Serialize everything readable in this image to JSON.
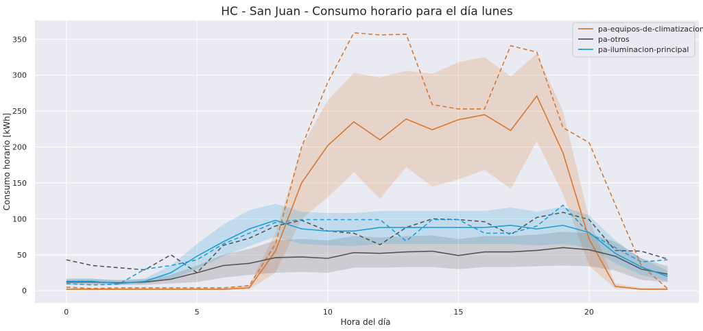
{
  "chart_data": {
    "type": "line",
    "title": "HC - San Juan - Consumo horario para el día lunes",
    "xlabel": "Hora del día",
    "ylabel": "Consumo horario [kWh]",
    "xlim": [
      -1.2,
      24.2
    ],
    "ylim": [
      -17,
      376
    ],
    "xticks": [
      0,
      5,
      10,
      15,
      20
    ],
    "yticks": [
      0,
      50,
      100,
      150,
      200,
      250,
      300,
      350
    ],
    "grid": true,
    "legend_position": "top-right",
    "x": [
      0,
      1,
      2,
      3,
      4,
      5,
      6,
      7,
      8,
      9,
      10,
      11,
      12,
      13,
      14,
      15,
      16,
      17,
      18,
      19,
      20,
      21,
      22,
      23
    ],
    "series": [
      {
        "name": "pa-equipos-de-climatizacion",
        "color": "#d9772f",
        "mean": [
          2,
          2,
          2,
          2,
          2,
          2,
          2,
          4,
          55,
          150,
          202,
          235,
          210,
          239,
          224,
          238,
          245,
          223,
          271,
          192,
          72,
          6,
          2,
          2
        ],
        "lower": [
          1,
          1,
          1,
          1,
          1,
          1,
          1,
          2,
          25,
          100,
          130,
          165,
          128,
          172,
          145,
          155,
          168,
          142,
          208,
          135,
          35,
          3,
          1,
          1
        ],
        "upper": [
          4,
          4,
          4,
          4,
          4,
          4,
          4,
          8,
          80,
          200,
          265,
          303,
          297,
          306,
          302,
          318,
          325,
          298,
          330,
          250,
          100,
          10,
          4,
          4
        ],
        "dashed": [
          5,
          3,
          4,
          4,
          4,
          4,
          4,
          7,
          65,
          200,
          290,
          359,
          356,
          357,
          259,
          253,
          253,
          341,
          332,
          227,
          206,
          120,
          35,
          3
        ]
      },
      {
        "name": "pa-otros",
        "color": "#555555",
        "mean": [
          12,
          12,
          11,
          12,
          16,
          25,
          35,
          38,
          46,
          47,
          45,
          53,
          52,
          54,
          55,
          49,
          54,
          54,
          56,
          60,
          57,
          48,
          30,
          23
        ],
        "lower": [
          8,
          8,
          8,
          8,
          10,
          12,
          18,
          22,
          25,
          26,
          25,
          32,
          32,
          33,
          33,
          30,
          33,
          33,
          34,
          35,
          34,
          28,
          15,
          12
        ],
        "upper": [
          16,
          16,
          15,
          16,
          22,
          35,
          50,
          58,
          70,
          72,
          70,
          76,
          74,
          76,
          77,
          72,
          76,
          76,
          78,
          82,
          80,
          68,
          45,
          34
        ],
        "dashed": [
          43,
          35,
          32,
          29,
          50,
          25,
          63,
          73,
          90,
          98,
          83,
          80,
          64,
          88,
          100,
          99,
          96,
          78,
          102,
          109,
          99,
          56,
          55,
          44
        ]
      },
      {
        "name": "pa-iluminacion-principal",
        "color": "#1e9fd9",
        "mean": [
          13,
          13,
          10,
          13,
          25,
          48,
          68,
          86,
          98,
          86,
          83,
          83,
          88,
          88,
          88,
          88,
          88,
          91,
          86,
          91,
          81,
          52,
          33,
          20
        ],
        "lower": [
          10,
          10,
          8,
          10,
          16,
          30,
          48,
          62,
          75,
          65,
          63,
          62,
          65,
          65,
          65,
          65,
          65,
          65,
          63,
          65,
          60,
          38,
          22,
          13
        ],
        "upper": [
          17,
          17,
          14,
          17,
          35,
          65,
          92,
          112,
          121,
          110,
          108,
          108,
          111,
          111,
          111,
          111,
          111,
          116,
          110,
          117,
          105,
          70,
          45,
          28
        ],
        "dashed": [
          10,
          8,
          9,
          30,
          35,
          43,
          65,
          80,
          95,
          99,
          99,
          99,
          99,
          69,
          99,
          99,
          80,
          80,
          90,
          119,
          80,
          60,
          40,
          43
        ]
      }
    ]
  }
}
